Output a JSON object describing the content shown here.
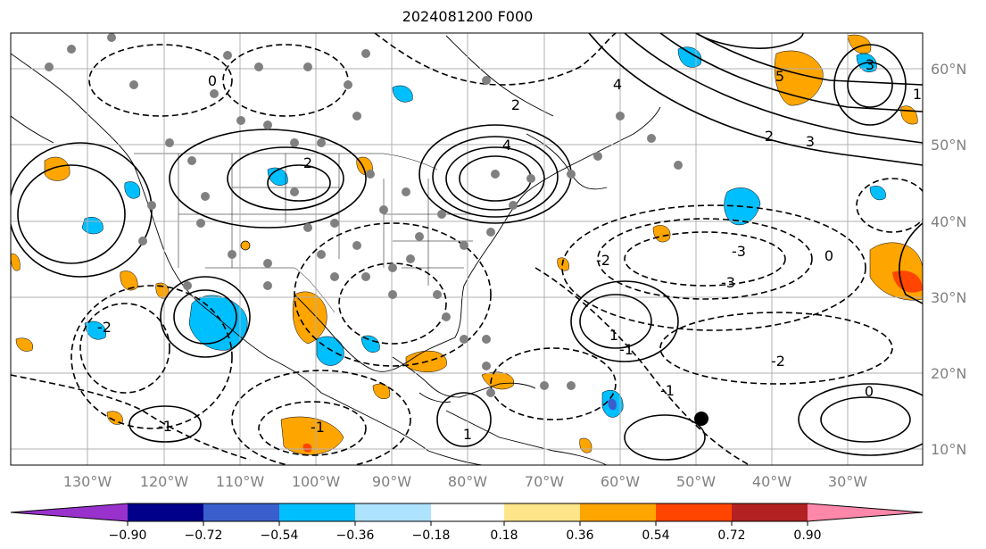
{
  "title": "2024081200 F000",
  "map": {
    "lon_labels": [
      "130°W",
      "120°W",
      "110°W",
      "100°W",
      "90°W",
      "80°W",
      "70°W",
      "60°W",
      "50°W",
      "40°W",
      "30°W"
    ],
    "lat_labels": [
      "60°N",
      "50°N",
      "40°N",
      "30°N",
      "20°N",
      "10°N"
    ],
    "contour_labels": [
      "4",
      "2",
      "0",
      "-1",
      "-2",
      "-3",
      "4",
      "2",
      "5",
      "3",
      "1",
      "0",
      "-1",
      "-2",
      "-3",
      "2",
      "3",
      "1",
      "-1",
      "0",
      "-2",
      "1",
      "-1"
    ],
    "colors": {
      "grid": "#b0b0b0",
      "label": "#808080",
      "contour": "#000000",
      "marker": "#808080"
    }
  },
  "colorbar": {
    "ticks": [
      "−0.90",
      "−0.72",
      "−0.54",
      "−0.36",
      "−0.18",
      "0.18",
      "0.36",
      "0.54",
      "0.72",
      "0.90"
    ],
    "colors": [
      "#9932cc",
      "#00008b",
      "#3a5fcd",
      "#00bfff",
      "#aee3ff",
      "#ffffff",
      "#ffe58a",
      "#ffa500",
      "#ff4500",
      "#b22222",
      "#ff88aa"
    ]
  }
}
